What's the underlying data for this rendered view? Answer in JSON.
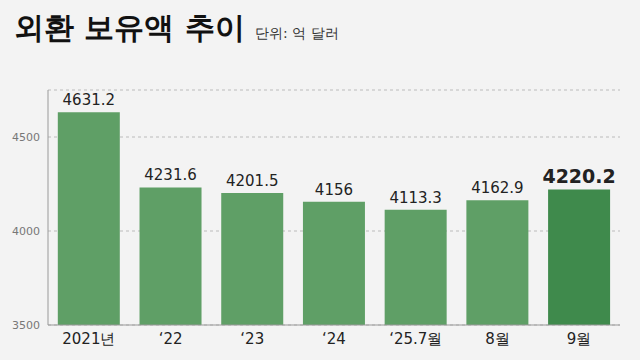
{
  "chart_data": {
    "type": "bar",
    "title": "외환 보유액 추이",
    "subtitle": "단위: 억 달러",
    "categories": [
      "2021년",
      "‘22",
      "‘23",
      "‘24",
      "‘25.7월",
      "8월",
      "9월"
    ],
    "values": [
      4631.2,
      4231.6,
      4201.5,
      4156,
      4113.3,
      4162.9,
      4220.2
    ],
    "colors": [
      "#5f9f66",
      "#5f9f66",
      "#5f9f66",
      "#5f9f66",
      "#5f9f66",
      "#5f9f66",
      "#3f8a4c"
    ],
    "ylim": [
      3500,
      4750
    ],
    "yticks": [
      3500,
      4000,
      4500
    ],
    "grid": true,
    "data_labels": true
  }
}
